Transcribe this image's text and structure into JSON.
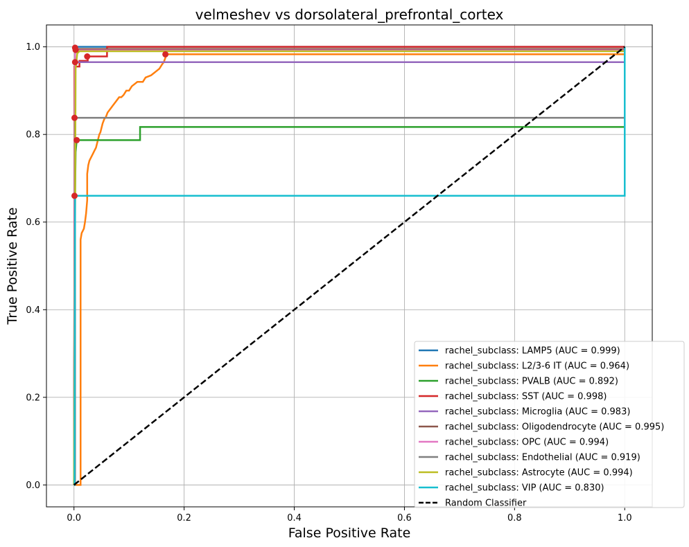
{
  "chart_data": {
    "type": "line",
    "title": "velmeshev vs dorsolateral_prefrontal_cortex",
    "xlabel": "False Positive Rate",
    "ylabel": "True Positive Rate",
    "xlim": [
      -0.05,
      1.05
    ],
    "ylim": [
      -0.05,
      1.05
    ],
    "x_ticks": [
      "0.0",
      "0.2",
      "0.4",
      "0.6",
      "0.8",
      "1.0"
    ],
    "y_ticks": [
      "0.0",
      "0.2",
      "0.4",
      "0.6",
      "0.8",
      "1.0"
    ],
    "grid": true,
    "legend_position": "lower-right",
    "series": [
      {
        "name": "rachel_subclass: LAMP5 (AUC = 0.999)",
        "color": "#1f77b4",
        "x": [
          0,
          0.001,
          0.002,
          0.003,
          0.003,
          0.06,
          0.06,
          1.0
        ],
        "y": [
          0,
          0.68,
          0.995,
          0.995,
          1.0,
          1.0,
          1.0,
          1.0
        ]
      },
      {
        "name": "rachel_subclass: L2/3-6 IT (AUC = 0.964)",
        "color": "#ff7f0e",
        "x": [
          0,
          0.004,
          0.004,
          0.012,
          0.012,
          0.014,
          0.016,
          0.018,
          0.02,
          0.022,
          0.024,
          0.024,
          0.026,
          0.028,
          0.03,
          0.032,
          0.034,
          0.036,
          0.038,
          0.04,
          0.042,
          0.044,
          0.046,
          0.048,
          0.05,
          0.052,
          0.055,
          0.058,
          0.061,
          0.064,
          0.067,
          0.07,
          0.073,
          0.076,
          0.079,
          0.082,
          0.086,
          0.09,
          0.095,
          0.1,
          0.105,
          0.11,
          0.115,
          0.12,
          0.125,
          0.13,
          0.14,
          0.145,
          0.15,
          0.155,
          0.16,
          0.163,
          0.166,
          0.166,
          0.17,
          1.0,
          1.0
        ],
        "y": [
          0,
          0,
          0,
          0,
          0.56,
          0.575,
          0.58,
          0.585,
          0.6,
          0.62,
          0.65,
          0.71,
          0.73,
          0.74,
          0.745,
          0.75,
          0.755,
          0.76,
          0.765,
          0.77,
          0.78,
          0.79,
          0.8,
          0.805,
          0.815,
          0.825,
          0.835,
          0.84,
          0.85,
          0.855,
          0.86,
          0.865,
          0.87,
          0.875,
          0.88,
          0.885,
          0.885,
          0.89,
          0.9,
          0.9,
          0.91,
          0.915,
          0.92,
          0.92,
          0.92,
          0.93,
          0.935,
          0.94,
          0.945,
          0.95,
          0.96,
          0.965,
          0.975,
          0.983,
          0.983,
          0.983,
          0.983
        ]
      },
      {
        "name": "rachel_subclass: PVALB (AUC = 0.892)",
        "color": "#2ca02c",
        "x": [
          0,
          0.002,
          0.003,
          0.005,
          0.12,
          0.12,
          1.0,
          1.0
        ],
        "y": [
          0,
          0.66,
          0.76,
          0.787,
          0.787,
          0.817,
          0.817,
          0.817
        ]
      },
      {
        "name": "rachel_subclass: SST (AUC = 0.998)",
        "color": "#d62728",
        "x": [
          0,
          0.001,
          0.001,
          0.01,
          0.01,
          0.025,
          0.025,
          0.06,
          0.06,
          1.0
        ],
        "y": [
          0,
          0.66,
          0.955,
          0.955,
          0.968,
          0.968,
          0.978,
          0.978,
          1.0,
          1.0
        ]
      },
      {
        "name": "rachel_subclass: Microglia (AUC = 0.983)",
        "color": "#9467bd",
        "x": [
          0,
          0.002,
          0.004,
          1.0
        ],
        "y": [
          0,
          0.965,
          0.965,
          0.965
        ]
      },
      {
        "name": "rachel_subclass: Oligodendrocyte (AUC = 0.995)",
        "color": "#8c564b",
        "x": [
          0,
          0.002,
          0.005,
          1.0
        ],
        "y": [
          0,
          0.993,
          0.995,
          0.995
        ]
      },
      {
        "name": "rachel_subclass: OPC (AUC = 0.994)",
        "color": "#e377c2",
        "x": [
          0,
          0.002,
          0.005,
          1.0
        ],
        "y": [
          0,
          0.99,
          0.992,
          0.992
        ]
      },
      {
        "name": "rachel_subclass: Endothelial (AUC = 0.919)",
        "color": "#7f7f7f",
        "x": [
          0,
          0.002,
          0.002,
          1.0
        ],
        "y": [
          0,
          0.0,
          0.838,
          0.838
        ]
      },
      {
        "name": "rachel_subclass: Astrocyte (AUC = 0.994)",
        "color": "#bcbd22",
        "x": [
          0,
          0.003,
          0.006,
          0.01,
          1.0,
          1.0
        ],
        "y": [
          0,
          0.95,
          0.985,
          0.99,
          0.99,
          1.0
        ]
      },
      {
        "name": "rachel_subclass: VIP (AUC = 0.830)",
        "color": "#17becf",
        "x": [
          0,
          0.001,
          0.002,
          1.0,
          1.0,
          1.0
        ],
        "y": [
          0,
          0.0,
          0.66,
          0.66,
          0.965,
          1.0
        ]
      },
      {
        "name": "Random Classifier",
        "color": "#000000",
        "dashed": true,
        "x": [
          0,
          1
        ],
        "y": [
          0,
          1
        ]
      }
    ],
    "threshold_points": {
      "color": "#d62728",
      "points": [
        {
          "x": 0.002,
          "y": 0.998
        },
        {
          "x": 0.003,
          "y": 0.993
        },
        {
          "x": 0.166,
          "y": 0.983
        },
        {
          "x": 0.024,
          "y": 0.978
        },
        {
          "x": 0.002,
          "y": 0.965
        },
        {
          "x": 0.001,
          "y": 0.838
        },
        {
          "x": 0.005,
          "y": 0.787
        },
        {
          "x": 0.001,
          "y": 0.66
        }
      ]
    }
  }
}
